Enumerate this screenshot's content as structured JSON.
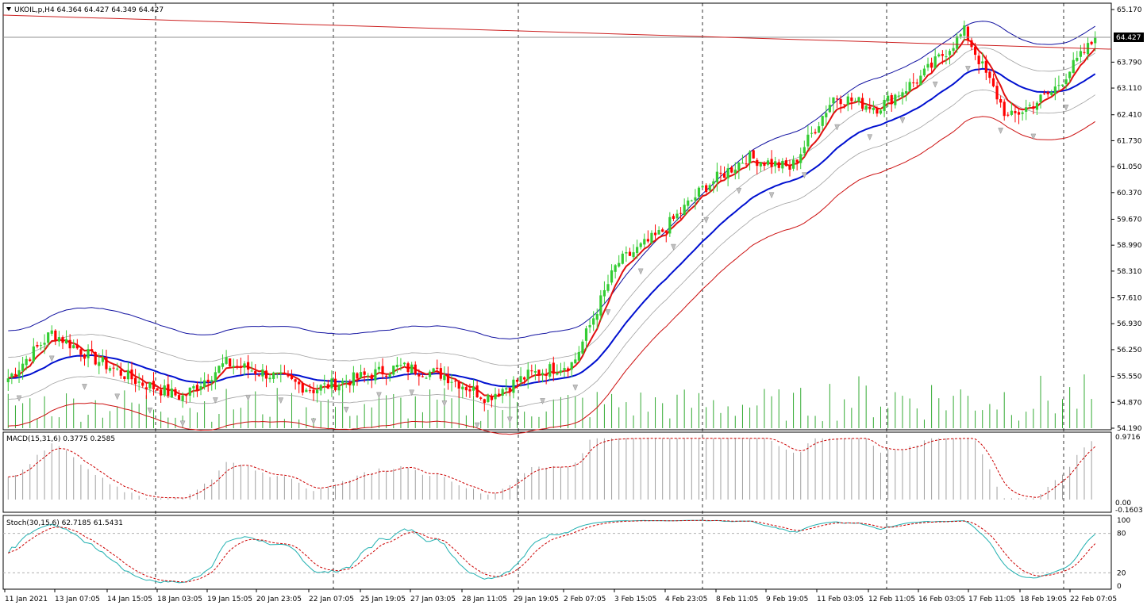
{
  "header": {
    "symbol_title": "UKOIL,p,H4  64.364 64.427 64.349 64.427",
    "macd_title": "MACD(15,31,6) 0.3775 0.2585",
    "stoch_title": "Stoch(30,15,6) 62.7185 61.5431"
  },
  "colors": {
    "bull": "#33cc33",
    "bear": "#ff0000",
    "ema_fast": "#e11010",
    "ema_slow": "#0010d0",
    "envelope_upper": "#1010a0",
    "envelope_lower": "#cc1010",
    "band_inner": "#a0a0a0",
    "volume": "#33aa33",
    "macd_hist": "#a0a0a0",
    "macd_signal": "#cc0000",
    "stoch_main": "#20b0b0",
    "stoch_signal": "#cc0000",
    "trendline": "#cc2020",
    "bid_line": "#808080"
  },
  "price_axis": {
    "labels": [
      "65.170",
      "64.427",
      "63.790",
      "63.110",
      "62.410",
      "61.730",
      "61.050",
      "60.370",
      "59.670",
      "58.990",
      "58.310",
      "57.610",
      "56.930",
      "56.250",
      "55.550",
      "54.870",
      "54.190"
    ],
    "current_price": "64.427"
  },
  "macd_axis": {
    "labels": [
      "0.9716",
      "0.00",
      "-0.1603"
    ]
  },
  "stoch_axis": {
    "labels": [
      "100",
      "80",
      "20",
      "0"
    ]
  },
  "time_axis": {
    "labels": [
      "11 Jan 2021",
      "13 Jan 07:05",
      "14 Jan 15:05",
      "18 Jan 03:05",
      "19 Jan 15:05",
      "20 Jan 23:05",
      "22 Jan 07:05",
      "25 Jan 19:05",
      "27 Jan 03:05",
      "28 Jan 11:05",
      "29 Jan 19:05",
      "2 Feb 07:05",
      "3 Feb 15:05",
      "4 Feb 23:05",
      "8 Feb 11:05",
      "9 Feb 19:05",
      "11 Feb 03:05",
      "12 Feb 11:05",
      "16 Feb 03:05",
      "17 Feb 11:05",
      "18 Feb 19:05",
      "22 Feb 07:05"
    ]
  },
  "chart_data": {
    "type": "candlestick",
    "symbol": "UKOIL,p",
    "timeframe": "H4",
    "ohlc_current": {
      "open": 64.364,
      "high": 64.427,
      "low": 64.349,
      "close": 64.427
    },
    "y_range": [
      54.19,
      65.17
    ],
    "waypoints_close": [
      55.5,
      56.7,
      56.0,
      55.4,
      55.0,
      55.9,
      55.6,
      55.2,
      55.5,
      55.8,
      55.6,
      55.0,
      55.6,
      55.9,
      58.5,
      59.3,
      60.5,
      61.3,
      61.0,
      62.9,
      62.6,
      63.4,
      64.6,
      62.3,
      63.0,
      64.4
    ],
    "macd_range": [
      -0.1603,
      0.9716
    ],
    "stoch_range": [
      0,
      100
    ],
    "stoch_levels": [
      20,
      80
    ]
  }
}
